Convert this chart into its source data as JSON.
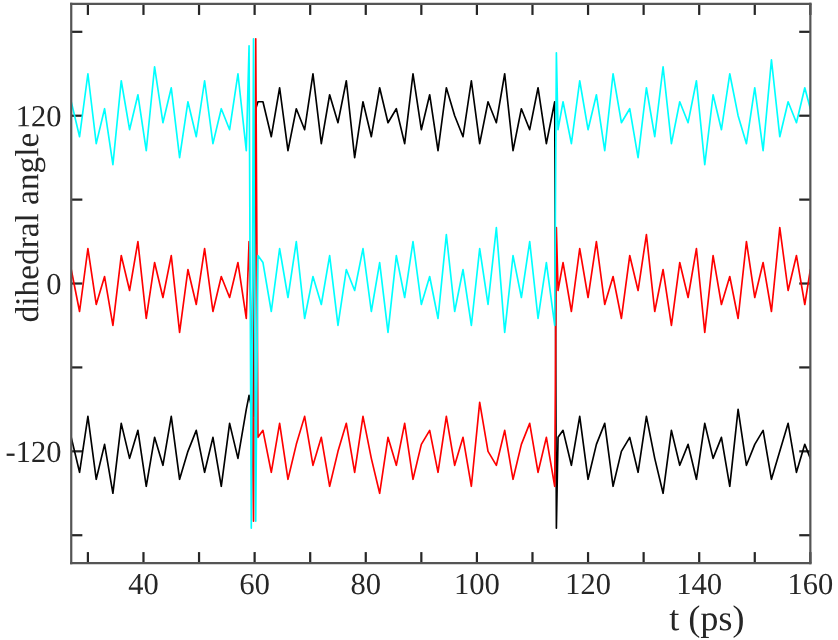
{
  "chart_data": {
    "type": "line",
    "xlabel": "t (ps)",
    "ylabel": "dihedral angle",
    "x": [
      27,
      28.5,
      30,
      31.5,
      33,
      34.5,
      36,
      37.5,
      39,
      40.5,
      42,
      43.5,
      45,
      46.5,
      48,
      49.5,
      51,
      52.5,
      54,
      55.5,
      57,
      58.5,
      59,
      59.4,
      59.8,
      60.2,
      60.6,
      61.5,
      63,
      64.5,
      66,
      67.5,
      69,
      70.5,
      72,
      73.5,
      75,
      76.5,
      78,
      79.5,
      81,
      82.5,
      84,
      85.5,
      87,
      88.5,
      90,
      91.5,
      93,
      94.5,
      96,
      97.5,
      99,
      100.5,
      102,
      103.5,
      105,
      106.5,
      108,
      109.5,
      111,
      112.5,
      114,
      114.3,
      114.6,
      115.5,
      117,
      118.5,
      120,
      121.5,
      123,
      124.5,
      126,
      127.5,
      129,
      130.5,
      132,
      133.5,
      135,
      136.5,
      138,
      139.5,
      141,
      142.5,
      144,
      145.5,
      147,
      148.5,
      150,
      151.5,
      153,
      154.5,
      156,
      157.5,
      159,
      160
    ],
    "series": [
      {
        "color": "#000000",
        "values": [
          -110,
          -135,
          -95,
          -140,
          -115,
          -150,
          -100,
          -125,
          -105,
          -145,
          -110,
          -130,
          -95,
          -140,
          -120,
          -105,
          -135,
          -110,
          -145,
          -100,
          -125,
          -90,
          -80,
          null,
          -95,
          125,
          130,
          130,
          105,
          140,
          95,
          125,
          110,
          150,
          100,
          135,
          115,
          145,
          90,
          130,
          105,
          140,
          115,
          125,
          100,
          150,
          110,
          135,
          95,
          140,
          120,
          105,
          145,
          100,
          130,
          115,
          150,
          95,
          125,
          110,
          140,
          100,
          130,
          -175,
          -110,
          -105,
          -130,
          -95,
          -140,
          -115,
          -100,
          -145,
          -120,
          -110,
          -135,
          -95,
          -125,
          -150,
          -105,
          -130,
          -115,
          -140,
          -100,
          -125,
          -110,
          -145,
          -90,
          -130,
          -115,
          -105,
          -140,
          -120,
          -100,
          -135,
          -115,
          -125
        ]
      },
      {
        "color": "#ff0000",
        "values": [
          10,
          -20,
          25,
          -15,
          5,
          -30,
          20,
          -5,
          30,
          -25,
          15,
          -10,
          20,
          -35,
          10,
          -15,
          25,
          -20,
          5,
          -10,
          15,
          -25,
          30,
          -35,
          -170,
          175,
          -110,
          -105,
          -135,
          -100,
          -140,
          -115,
          -95,
          -130,
          -110,
          -145,
          -120,
          -100,
          -135,
          -95,
          -125,
          -150,
          -110,
          -130,
          -100,
          -140,
          -115,
          -105,
          -135,
          -95,
          -130,
          -110,
          -145,
          -85,
          -120,
          -130,
          -105,
          -140,
          -115,
          -100,
          -135,
          -110,
          -145,
          40,
          -5,
          15,
          -20,
          25,
          -10,
          30,
          -15,
          5,
          -25,
          20,
          -5,
          35,
          -20,
          10,
          -30,
          15,
          -10,
          25,
          -35,
          20,
          -15,
          5,
          -25,
          30,
          -10,
          15,
          -20,
          40,
          -5,
          20,
          -15,
          10
        ]
      },
      {
        "color": "#00ffff",
        "values": [
          130,
          105,
          150,
          100,
          125,
          85,
          145,
          110,
          135,
          95,
          155,
          115,
          140,
          90,
          130,
          105,
          145,
          100,
          125,
          110,
          150,
          95,
          170,
          -175,
          175,
          -170,
          20,
          15,
          -20,
          25,
          -10,
          30,
          -25,
          5,
          -15,
          20,
          -30,
          10,
          -5,
          25,
          -20,
          15,
          -35,
          20,
          -10,
          30,
          -15,
          5,
          -25,
          35,
          -20,
          10,
          -30,
          25,
          -15,
          40,
          -35,
          20,
          -10,
          30,
          -25,
          15,
          -30,
          165,
          110,
          130,
          100,
          145,
          110,
          135,
          95,
          150,
          115,
          125,
          90,
          140,
          105,
          155,
          100,
          130,
          115,
          145,
          85,
          135,
          110,
          150,
          120,
          100,
          140,
          95,
          160,
          105,
          130,
          115,
          140,
          125
        ]
      }
    ],
    "xlim": [
      27,
      160
    ],
    "xticks": [
      {
        "value": 30,
        "label": null
      },
      40,
      {
        "value": 50,
        "label": null
      },
      60,
      {
        "value": 70,
        "label": null
      },
      80,
      {
        "value": 90,
        "label": null
      },
      100,
      {
        "value": 110,
        "label": null
      },
      120,
      {
        "value": 130,
        "label": null
      },
      140,
      {
        "value": 150,
        "label": null
      },
      160
    ],
    "ylim": [
      -200,
      200
    ],
    "yticks": [
      {
        "value": -180,
        "label": null
      },
      -120,
      {
        "value": -60,
        "label": null
      },
      0,
      {
        "value": 60,
        "label": null
      },
      120,
      {
        "value": 180,
        "label": null
      }
    ],
    "grid": false,
    "marker": "none",
    "line_style": "solid"
  }
}
